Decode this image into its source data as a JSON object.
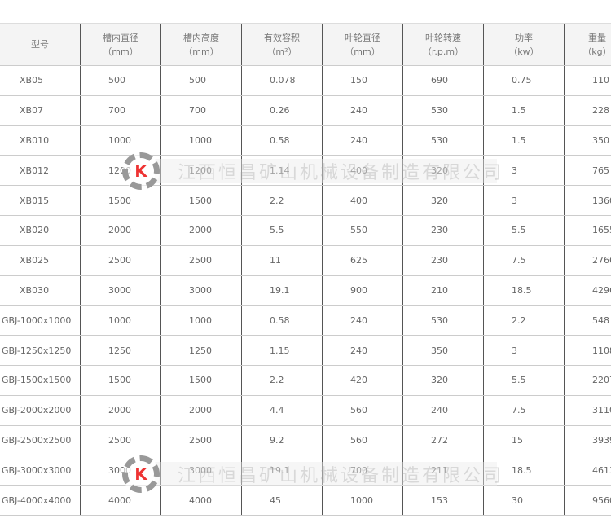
{
  "headers": [
    [
      "型号",
      ""
    ],
    [
      "槽内直径",
      "（mm）"
    ],
    [
      "槽内高度",
      "（mm）"
    ],
    [
      "有效容积",
      "（m²）"
    ],
    [
      "叶轮直径",
      "（mm）"
    ],
    [
      "叶轮转速",
      "（r.p.m）"
    ],
    [
      "功率",
      "（kw）"
    ],
    [
      "重量",
      "（kg）"
    ]
  ],
  "rows": [
    [
      "XB05",
      "500",
      "500",
      "0.078",
      "150",
      "690",
      "0.75",
      "110"
    ],
    [
      "XB07",
      "700",
      "700",
      "0.26",
      "240",
      "530",
      "1.5",
      "228"
    ],
    [
      "XB010",
      "1000",
      "1000",
      "0.58",
      "240",
      "530",
      "1.5",
      "350"
    ],
    [
      "XB012",
      "1200",
      "1200",
      "1.14",
      "400",
      "320",
      "3",
      "765"
    ],
    [
      "XB015",
      "1500",
      "1500",
      "2.2",
      "400",
      "320",
      "3",
      "1360"
    ],
    [
      "XB020",
      "2000",
      "2000",
      "5.5",
      "550",
      "230",
      "5.5",
      "1655"
    ],
    [
      "XB025",
      "2500",
      "2500",
      "11",
      "625",
      "230",
      "7.5",
      "2766"
    ],
    [
      "XB030",
      "3000",
      "3000",
      "19.1",
      "900",
      "210",
      "18.5",
      "4296"
    ],
    [
      "GBJ-1000x1000",
      "1000",
      "1000",
      "0.58",
      "240",
      "530",
      "2.2",
      "548"
    ],
    [
      "GBJ-1250x1250",
      "1250",
      "1250",
      "1.15",
      "240",
      "350",
      "3",
      "1108"
    ],
    [
      "GBJ-1500x1500",
      "1500",
      "1500",
      "2.2",
      "420",
      "320",
      "5.5",
      "2207"
    ],
    [
      "GBJ-2000x2000",
      "2000",
      "2000",
      "4.4",
      "560",
      "240",
      "7.5",
      "3110"
    ],
    [
      "GBJ-2500x2500",
      "2500",
      "2500",
      "9.2",
      "560",
      "272",
      "15",
      "3939"
    ],
    [
      "GBJ-3000x3000",
      "3000",
      "3000",
      "19.1",
      "700",
      "211",
      "18.5",
      "4613"
    ],
    [
      "GBJ-4000x4000",
      "4000",
      "4000",
      "45",
      "1000",
      "153",
      "30",
      "9560"
    ]
  ],
  "watermark": {
    "logo": "K",
    "text": "江西恒昌矿山机械设备制造有限公司"
  }
}
